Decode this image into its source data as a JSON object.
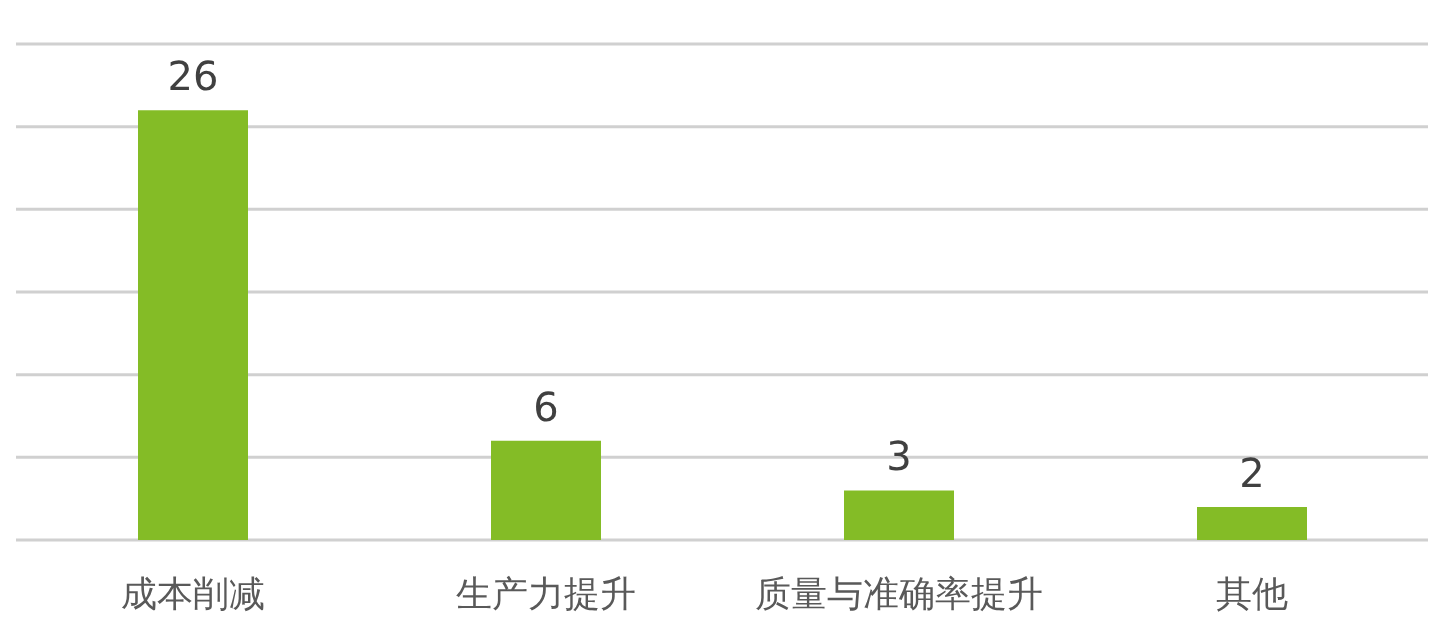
{
  "chart_data": {
    "type": "bar",
    "categories": [
      "成本削减",
      "生产力提升",
      "质量与准确率提升",
      "其他"
    ],
    "values": [
      26,
      6,
      3,
      2
    ],
    "color": "#84bc26",
    "grid": "y",
    "tick_labels": "x",
    "data_labels": true
  }
}
